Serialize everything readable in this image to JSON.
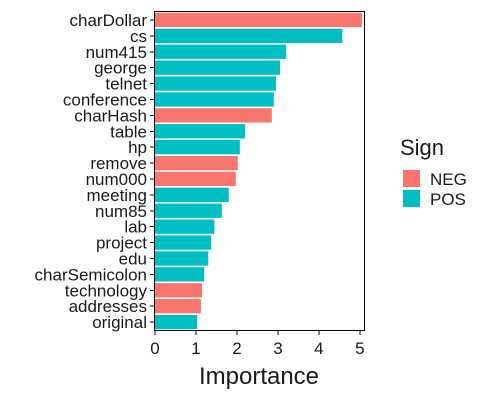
{
  "chart_data": {
    "type": "bar",
    "orientation": "horizontal",
    "xlabel": "Importance",
    "ylabel": "",
    "xlim": [
      0,
      5.1
    ],
    "xticks": [
      "0",
      "1",
      "2",
      "3",
      "4",
      "5"
    ],
    "grid": false,
    "legend": {
      "title": "Sign",
      "position": "right",
      "entries": [
        {
          "label": "NEG",
          "color": "#F8766D"
        },
        {
          "label": "POS",
          "color": "#00BFC4"
        }
      ]
    },
    "categories": [
      "charDollar",
      "cs",
      "num415",
      "george",
      "telnet",
      "conference",
      "charHash",
      "table",
      "hp",
      "remove",
      "num000",
      "meeting",
      "num85",
      "lab",
      "project",
      "edu",
      "charSemicolon",
      "technology",
      "addresses",
      "original"
    ],
    "values": [
      5.05,
      4.57,
      3.2,
      3.05,
      2.95,
      2.9,
      2.85,
      2.2,
      2.07,
      2.02,
      1.97,
      1.8,
      1.63,
      1.45,
      1.37,
      1.3,
      1.2,
      1.15,
      1.12,
      1.03
    ],
    "signs": [
      "NEG",
      "POS",
      "POS",
      "POS",
      "POS",
      "POS",
      "NEG",
      "POS",
      "POS",
      "NEG",
      "NEG",
      "POS",
      "POS",
      "POS",
      "POS",
      "POS",
      "POS",
      "NEG",
      "NEG",
      "POS"
    ]
  }
}
